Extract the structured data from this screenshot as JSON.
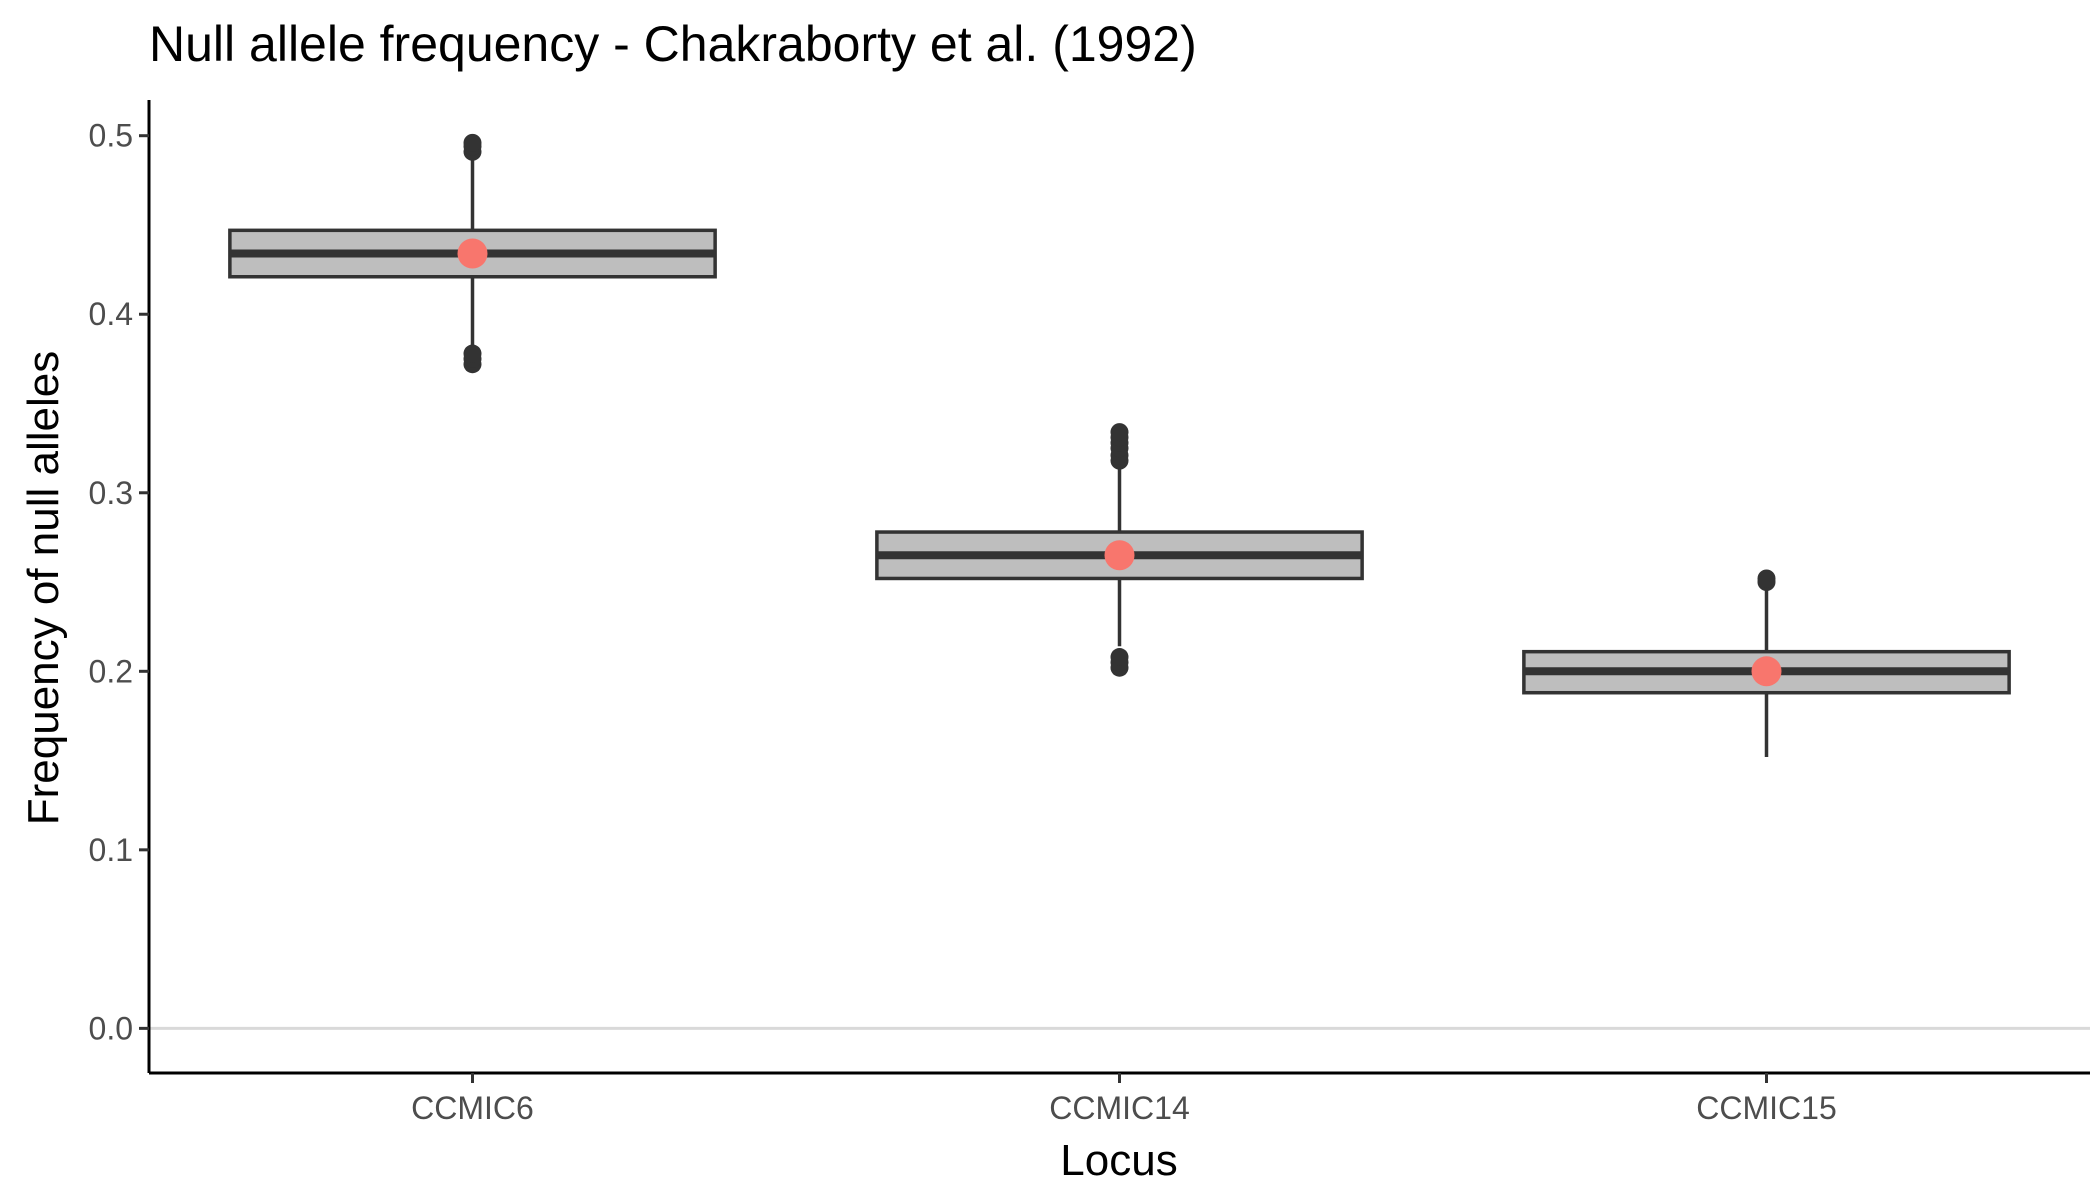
{
  "chart_data": {
    "type": "boxplot",
    "title": "Null allele frequency - Chakraborty et al. (1992)",
    "xlabel": "Locus",
    "ylabel": "Frequency of null alleles",
    "ylim": [
      -0.025,
      0.52
    ],
    "yticks": [
      0.0,
      0.1,
      0.2,
      0.3,
      0.4,
      0.5
    ],
    "ytick_labels": [
      "0.0",
      "0.1",
      "0.2",
      "0.3",
      "0.4",
      "0.5"
    ],
    "reference_line": 0.0,
    "grid": false,
    "colors": {
      "box_fill": "#bebebe",
      "box_stroke": "#333333",
      "point": "#f8766d",
      "reference_line": "#d9d9d9",
      "axis": "#000000"
    },
    "categories": [
      "CCMIC6",
      "CCMIC14",
      "CCMIC15"
    ],
    "boxes": [
      {
        "category": "CCMIC6",
        "whisker_low": 0.381,
        "q1": 0.421,
        "median": 0.434,
        "q3": 0.447,
        "whisker_high": 0.487,
        "outliers": [
          0.372,
          0.375,
          0.378,
          0.491,
          0.494,
          0.496
        ],
        "point": 0.434
      },
      {
        "category": "CCMIC14",
        "whisker_low": 0.214,
        "q1": 0.252,
        "median": 0.265,
        "q3": 0.278,
        "whisker_high": 0.316,
        "outliers": [
          0.202,
          0.205,
          0.208,
          0.318,
          0.321,
          0.325,
          0.328,
          0.331,
          0.334
        ],
        "point": 0.265
      },
      {
        "category": "CCMIC15",
        "whisker_low": 0.152,
        "q1": 0.188,
        "median": 0.2,
        "q3": 0.211,
        "whisker_high": 0.248,
        "outliers": [
          0.25,
          0.252
        ],
        "point": 0.2
      }
    ]
  }
}
